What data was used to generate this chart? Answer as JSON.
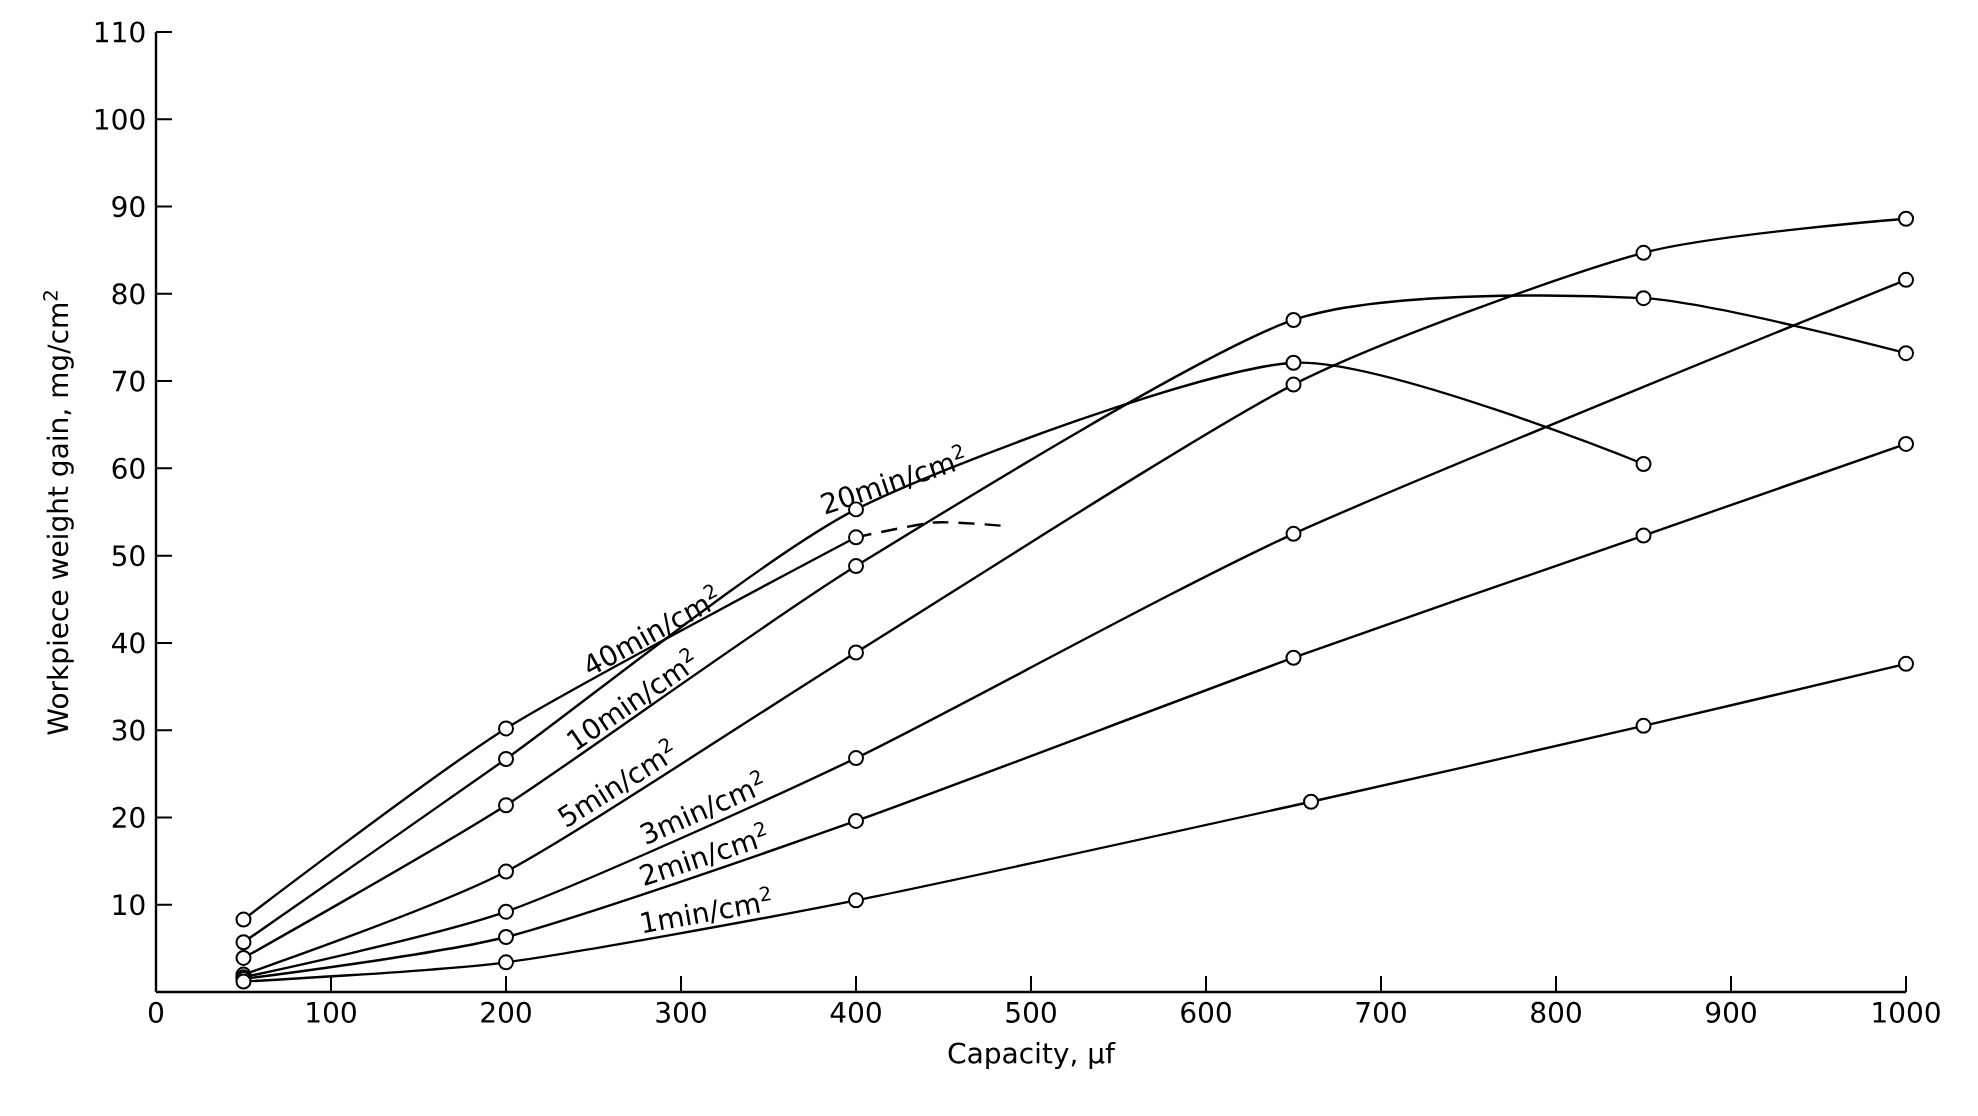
{
  "chart_data": {
    "type": "line",
    "xlabel": "Capacity, μf",
    "ylabel": "Workpiece weight gain,  mg/cm$^{2}$",
    "xlim": [
      0,
      1000
    ],
    "ylim": [
      0,
      110
    ],
    "xticks": [
      0,
      100,
      200,
      300,
      400,
      500,
      600,
      700,
      800,
      900,
      1000
    ],
    "yticks": [
      10,
      20,
      30,
      40,
      50,
      60,
      70,
      80,
      90,
      100,
      110
    ],
    "marker": "circle",
    "line_style": "solid",
    "series": [
      {
        "name": "40min/cm$^{2}$",
        "color": "#000000",
        "x": [
          50,
          200,
          400
        ],
        "values": [
          8.3,
          30.2,
          52.1
        ]
      },
      {
        "color": "#000000",
        "x": [
          400,
          445,
          485
        ],
        "values": [
          52.1,
          53.8,
          53.4
        ],
        "marker": "none",
        "line_style": "dashed"
      },
      {
        "name": "20min/cm$^{2}$",
        "color": "#000000",
        "x": [
          50,
          200,
          400,
          650,
          850
        ],
        "values": [
          5.7,
          26.7,
          55.3,
          72.1,
          60.5
        ]
      },
      {
        "name": "10min/cm$^{2}$",
        "color": "#000000",
        "x": [
          50,
          200,
          400,
          650,
          850,
          1000
        ],
        "values": [
          3.9,
          21.4,
          48.8,
          77,
          79.5,
          73.2
        ]
      },
      {
        "name": "5min/cm$^{2}$",
        "color": "#000000",
        "x": [
          50,
          200,
          400,
          650,
          850,
          1000
        ],
        "values": [
          2,
          13.8,
          38.9,
          69.6,
          84.7,
          88.6
        ]
      },
      {
        "name": "3min/cm$^{2}$",
        "color": "#000000",
        "x": [
          50,
          200,
          400,
          650,
          1000
        ],
        "values": [
          1.7,
          9.2,
          26.8,
          52.5,
          81.6
        ]
      },
      {
        "name": "2min/cm$^{2}$",
        "color": "#000000",
        "x": [
          50,
          200,
          400,
          650,
          850,
          1000
        ],
        "values": [
          1.5,
          6.3,
          19.6,
          38.3,
          52.3,
          62.8
        ]
      },
      {
        "name": "1min/cm$^{2}$",
        "color": "#000000",
        "x": [
          50,
          200,
          400,
          660,
          850,
          1000
        ],
        "values": [
          1.2,
          3.4,
          10.5,
          21.8,
          30.5,
          37.6
        ]
      }
    ]
  }
}
